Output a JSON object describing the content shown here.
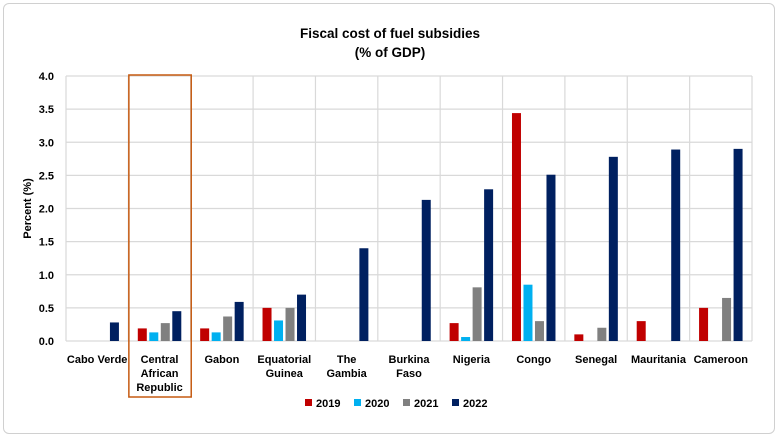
{
  "chart_data": {
    "type": "bar",
    "title": "Fiscal cost of fuel subsidies",
    "subtitle": "(% of GDP)",
    "xlabel": "",
    "ylabel": "Percent (%)",
    "ylim": [
      0,
      4.0
    ],
    "yticks": [
      "0.0",
      "0.5",
      "1.0",
      "1.5",
      "2.0",
      "2.5",
      "3.0",
      "3.5",
      "4.0"
    ],
    "grid": true,
    "legend_position": "bottom",
    "categories": [
      [
        "Cabo Verde"
      ],
      [
        "Central",
        "African",
        "Republic"
      ],
      [
        "Gabon"
      ],
      [
        "Equatorial",
        "Guinea"
      ],
      [
        "The",
        "Gambia"
      ],
      [
        "Burkina",
        "Faso"
      ],
      [
        "Nigeria"
      ],
      [
        "Congo"
      ],
      [
        "Senegal"
      ],
      [
        "Mauritania"
      ],
      [
        "Cameroon"
      ]
    ],
    "highlighted_category": "Central African Republic",
    "highlight_color": "#C55A11",
    "series": [
      {
        "name": "2019",
        "color": "#C00000",
        "values": [
          null,
          0.19,
          0.19,
          0.5,
          null,
          null,
          0.27,
          3.44,
          0.1,
          0.3,
          0.5
        ]
      },
      {
        "name": "2020",
        "color": "#00B0F0",
        "values": [
          null,
          0.13,
          0.13,
          0.31,
          null,
          null,
          0.06,
          0.85,
          null,
          null,
          null
        ]
      },
      {
        "name": "2021",
        "color": "#808080",
        "values": [
          null,
          0.27,
          0.37,
          0.5,
          null,
          null,
          0.81,
          0.3,
          0.2,
          null,
          0.65
        ]
      },
      {
        "name": "2022",
        "color": "#002060",
        "values": [
          0.28,
          0.45,
          0.59,
          0.7,
          1.4,
          2.13,
          2.29,
          2.51,
          2.78,
          2.89,
          2.9
        ]
      }
    ]
  }
}
